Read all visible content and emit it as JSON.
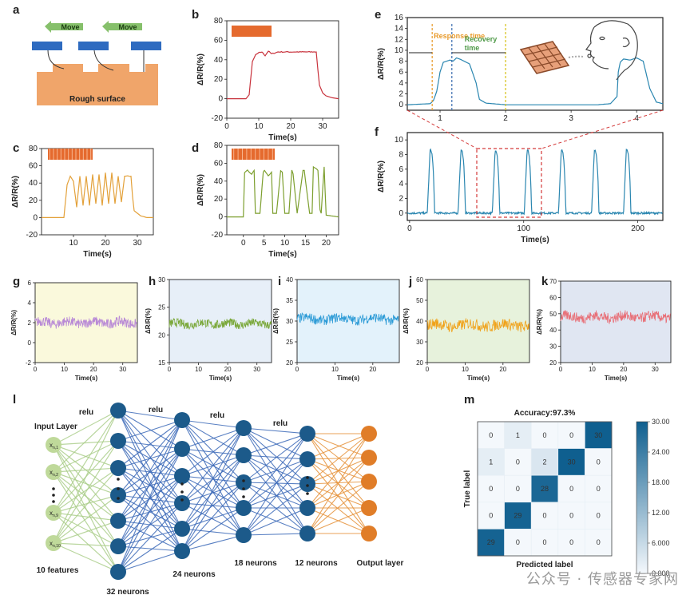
{
  "watermark": "公众号 · 传感器专家网",
  "panel_labels": [
    "a",
    "b",
    "c",
    "d",
    "e",
    "f",
    "g",
    "h",
    "i",
    "j",
    "k",
    "l",
    "m"
  ],
  "panel_a": {
    "move_labels": [
      "Move",
      "Move"
    ],
    "surface_label": "Rough surface",
    "colors": {
      "arrow": "#86c06b",
      "block": "#2e6bc0",
      "surface": "#f0a56a"
    }
  },
  "colors": {
    "b": "#c8323c",
    "c": "#e3a13a",
    "d": "#7d9f2f",
    "e": "#2a86b0",
    "f": "#2a86b0",
    "g": "#b98ad6",
    "h": "#7aa83a",
    "i": "#2a9ad6",
    "j": "#f0a21a",
    "k": "#e87078",
    "grid_stamp": "#e56a2e"
  },
  "chart_data": [
    {
      "panel": "b",
      "type": "line",
      "xlabel": "Time(s)",
      "ylabel": "ΔR/R(%)",
      "xlim": [
        0,
        35
      ],
      "ylim": [
        -20,
        80
      ],
      "xticks": [
        0,
        10,
        20,
        30
      ],
      "yticks": [
        -20,
        0,
        20,
        40,
        60,
        80
      ],
      "x": [
        0,
        6,
        7,
        8,
        9,
        10,
        11,
        12,
        13,
        14,
        16,
        20,
        24,
        28,
        28.5,
        29,
        30,
        31,
        33,
        35
      ],
      "y": [
        0,
        0,
        4,
        38,
        45,
        47,
        48,
        44,
        49,
        46,
        48,
        48,
        48,
        48,
        30,
        14,
        6,
        3,
        1,
        0
      ]
    },
    {
      "panel": "c",
      "type": "line",
      "xlabel": "Time(s)",
      "ylabel": "ΔR/R(%)",
      "xlim": [
        0,
        35
      ],
      "ylim": [
        -20,
        80
      ],
      "xticks": [
        10,
        20,
        30
      ],
      "yticks": [
        -20,
        0,
        20,
        40,
        60,
        80
      ],
      "x": [
        0,
        7,
        8,
        9,
        10,
        11,
        12,
        13,
        14,
        15,
        16,
        17,
        18,
        19,
        20,
        21,
        22,
        23,
        24,
        25,
        26,
        27,
        28,
        28.5,
        29,
        31,
        33,
        35
      ],
      "y": [
        0,
        0,
        38,
        48,
        42,
        12,
        48,
        14,
        48,
        14,
        50,
        16,
        50,
        14,
        52,
        16,
        52,
        16,
        48,
        18,
        48,
        48,
        48,
        24,
        8,
        2,
        0,
        0
      ]
    },
    {
      "panel": "d",
      "type": "line",
      "xlabel": "Time(s)",
      "ylabel": "ΔR/R(%)",
      "xlim": [
        -4,
        23
      ],
      "ylim": [
        -20,
        80
      ],
      "xticks": [
        0,
        5,
        10,
        15,
        20
      ],
      "yticks": [
        -20,
        0,
        20,
        40,
        60,
        80
      ],
      "x": [
        -4,
        0,
        0.3,
        1,
        2,
        2.6,
        2.9,
        4,
        4.8,
        5.1,
        6,
        6.8,
        7.1,
        8,
        9,
        9.4,
        10,
        11,
        11.7,
        12,
        13,
        14.4,
        14.7,
        16,
        16.6,
        16.9,
        18,
        18.5,
        18.8,
        19.5,
        20,
        23
      ],
      "y": [
        0,
        0,
        50,
        52,
        48,
        52,
        4,
        4,
        50,
        52,
        46,
        50,
        4,
        4,
        52,
        50,
        4,
        4,
        52,
        48,
        4,
        52,
        52,
        4,
        4,
        56,
        52,
        8,
        4,
        56,
        2,
        0
      ]
    },
    {
      "panel": "e",
      "type": "line",
      "xlabel": "",
      "ylabel": "ΔR/R(%)",
      "xlim": [
        0.5,
        4.4
      ],
      "ylim": [
        -1,
        16
      ],
      "xticks": [
        1,
        2,
        3,
        4
      ],
      "yticks": [
        0,
        2,
        4,
        6,
        8,
        10,
        12,
        14,
        16
      ],
      "x": [
        0.5,
        0.85,
        0.9,
        0.95,
        1.0,
        1.05,
        1.15,
        1.2,
        1.25,
        1.3,
        1.45,
        1.55,
        1.6,
        1.7,
        2.0,
        3.0,
        3.4,
        3.6,
        3.7,
        3.72,
        3.75,
        3.8,
        3.9,
        4.0,
        4.1,
        4.2,
        4.3,
        4.4
      ],
      "y": [
        0,
        0.2,
        0.8,
        2.5,
        6,
        7.8,
        8.2,
        8,
        8.6,
        8.4,
        7.5,
        4,
        1,
        0.3,
        0,
        0,
        0,
        0.2,
        1.5,
        6,
        7.8,
        8.4,
        8.2,
        8.6,
        8.0,
        3,
        0.5,
        0.2
      ],
      "annotations": [
        "Response time",
        "Recovery time"
      ],
      "annotation_colors": [
        "#e89a2a",
        "#4f9a48"
      ]
    },
    {
      "panel": "f",
      "type": "line",
      "xlabel": "Time(s)",
      "ylabel": "ΔR/R(%)",
      "xlim": [
        -2,
        222
      ],
      "ylim": [
        -1,
        11
      ],
      "xticks": [
        0,
        100,
        200
      ],
      "yticks": [
        0,
        2,
        4,
        6,
        8,
        10
      ],
      "peaks": [
        18,
        45,
        75,
        103,
        133,
        162,
        190
      ],
      "peak_height": 8.6
    },
    {
      "panel": "g",
      "type": "line",
      "xlabel": "Time(s)",
      "ylabel": "ΔR/R(%)",
      "xlim": [
        0,
        35
      ],
      "ylim": [
        -2,
        6
      ],
      "xticks": [
        0,
        10,
        20,
        30
      ],
      "yticks": [
        -2,
        0,
        2,
        4,
        6
      ],
      "mean": 2.0,
      "noise": 0.5,
      "bg": "#faf9dc"
    },
    {
      "panel": "h",
      "type": "line",
      "xlabel": "Time(s)",
      "ylabel": "ΔR/R(%)",
      "xlim": [
        0,
        35
      ],
      "ylim": [
        15,
        30
      ],
      "xticks": [
        0,
        10,
        20,
        30
      ],
      "yticks": [
        15,
        20,
        25,
        30
      ],
      "mean": 22.0,
      "noise": 0.8,
      "bg": "#e7eff8"
    },
    {
      "panel": "i",
      "type": "line",
      "xlabel": "Time(s)",
      "ylabel": "ΔR/R(%)",
      "xlim": [
        0,
        27
      ],
      "ylim": [
        20,
        40
      ],
      "xticks": [
        0,
        10,
        20
      ],
      "yticks": [
        20,
        25,
        30,
        35,
        40
      ],
      "mean": 30.5,
      "noise": 1.2,
      "bg": "#e3f2fb"
    },
    {
      "panel": "j",
      "type": "line",
      "xlabel": "Time(s)",
      "ylabel": "ΔR/R(%)",
      "xlim": [
        0,
        27
      ],
      "ylim": [
        20,
        60
      ],
      "xticks": [
        0,
        10,
        20
      ],
      "yticks": [
        20,
        30,
        40,
        50,
        60
      ],
      "mean": 38.0,
      "noise": 2.8,
      "bg": "#e7f2dc"
    },
    {
      "panel": "k",
      "type": "line",
      "xlabel": "Time(s)",
      "ylabel": "ΔR/R(%)",
      "xlim": [
        0,
        35
      ],
      "ylim": [
        20,
        70
      ],
      "xticks": [
        0,
        10,
        20,
        30
      ],
      "yticks": [
        20,
        30,
        40,
        50,
        60,
        70
      ],
      "mean": 48.0,
      "noise": 3.2,
      "bg": "#e0e6f2"
    },
    {
      "panel": "l",
      "type": "diagram",
      "layer_labels": [
        "Input Layer",
        "10 features",
        "32 neurons",
        "24 neurons",
        "18 neurons",
        "12 neurons",
        "Output layer"
      ],
      "relu_labels": [
        "relu",
        "relu",
        "relu",
        "relu"
      ],
      "input_nodes": [
        "x",
        "x",
        "x",
        "x"
      ],
      "input_subscripts": [
        "n,1",
        "n,2",
        "n,9",
        "n,10"
      ],
      "colors": {
        "input": "#bfd99a",
        "input_line": "#a8cc86",
        "hidden": "#1c5a8a",
        "hidden_line": "#3b69b8",
        "output": "#e07d28",
        "output_line": "#e6923a"
      }
    },
    {
      "panel": "m",
      "type": "heatmap",
      "title": "Accuracy:97.3%",
      "xlabel": "Predicted label",
      "ylabel": "True label",
      "matrix": [
        [
          0,
          1,
          0,
          0,
          30
        ],
        [
          1,
          0,
          2,
          30,
          0
        ],
        [
          0,
          0,
          28,
          0,
          0
        ],
        [
          0,
          29,
          0,
          0,
          0
        ],
        [
          29,
          0,
          0,
          0,
          0
        ]
      ],
      "colorbar_ticks": [
        "30.00",
        "24.00",
        "18.00",
        "12.00",
        "6.000",
        "0.000"
      ],
      "vmin": 0,
      "vmax": 30,
      "colors": {
        "low": "#f4f8fc",
        "high": "#0f5f8f"
      }
    }
  ]
}
